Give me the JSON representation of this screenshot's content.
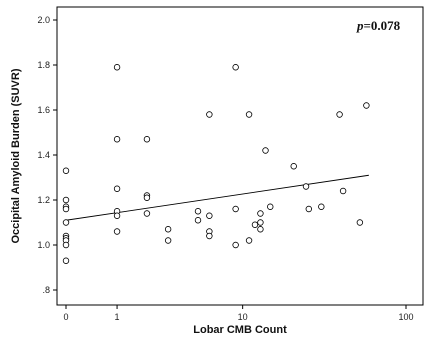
{
  "chart_data": {
    "type": "scatter",
    "title": "",
    "xlabel": "Lobar CMB Count",
    "ylabel": "Occipital Amyloid Burden (SUVR)",
    "x_scale": "log1p",
    "xlim": [
      0,
      100
    ],
    "ylim": [
      0.8,
      2.0
    ],
    "x_ticks": [
      {
        "value": 0,
        "label": "0"
      },
      {
        "value": 1,
        "label": "1"
      },
      {
        "value": 10,
        "label": "10"
      },
      {
        "value": 100,
        "label": "100"
      }
    ],
    "y_ticks": [
      {
        "value": 0.8,
        "label": ".8"
      },
      {
        "value": 1.0,
        "label": "1.0"
      },
      {
        "value": 1.2,
        "label": "1.2"
      },
      {
        "value": 1.4,
        "label": "1.4"
      },
      {
        "value": 1.6,
        "label": "1.6"
      },
      {
        "value": 1.8,
        "label": "1.8"
      },
      {
        "value": 2.0,
        "label": "2.0"
      }
    ],
    "annotation": {
      "italic": "p",
      "text": "=0.078"
    },
    "grid": false,
    "points": [
      {
        "x": 0,
        "y": 1.33
      },
      {
        "x": 0,
        "y": 1.2
      },
      {
        "x": 0,
        "y": 1.17
      },
      {
        "x": 0,
        "y": 1.16
      },
      {
        "x": 0,
        "y": 1.1
      },
      {
        "x": 0,
        "y": 1.04
      },
      {
        "x": 0,
        "y": 1.03
      },
      {
        "x": 0,
        "y": 1.02
      },
      {
        "x": 0,
        "y": 1.0
      },
      {
        "x": 0,
        "y": 0.93
      },
      {
        "x": 1,
        "y": 1.79
      },
      {
        "x": 1,
        "y": 1.47
      },
      {
        "x": 1,
        "y": 1.25
      },
      {
        "x": 1,
        "y": 1.15
      },
      {
        "x": 1,
        "y": 1.13
      },
      {
        "x": 1,
        "y": 1.06
      },
      {
        "x": 2,
        "y": 1.47
      },
      {
        "x": 2,
        "y": 1.22
      },
      {
        "x": 2,
        "y": 1.21
      },
      {
        "x": 2,
        "y": 1.14
      },
      {
        "x": 3,
        "y": 1.07
      },
      {
        "x": 3,
        "y": 1.02
      },
      {
        "x": 5,
        "y": 1.15
      },
      {
        "x": 5,
        "y": 1.11
      },
      {
        "x": 6,
        "y": 1.58
      },
      {
        "x": 6,
        "y": 1.13
      },
      {
        "x": 6,
        "y": 1.06
      },
      {
        "x": 6,
        "y": 1.04
      },
      {
        "x": 9,
        "y": 1.79
      },
      {
        "x": 9,
        "y": 1.16
      },
      {
        "x": 9,
        "y": 1.0
      },
      {
        "x": 11,
        "y": 1.58
      },
      {
        "x": 11,
        "y": 1.02
      },
      {
        "x": 12,
        "y": 1.09
      },
      {
        "x": 13,
        "y": 1.14
      },
      {
        "x": 13,
        "y": 1.1
      },
      {
        "x": 13,
        "y": 1.07
      },
      {
        "x": 14,
        "y": 1.42
      },
      {
        "x": 15,
        "y": 1.17
      },
      {
        "x": 21,
        "y": 1.35
      },
      {
        "x": 25,
        "y": 1.26
      },
      {
        "x": 26,
        "y": 1.16
      },
      {
        "x": 31,
        "y": 1.17
      },
      {
        "x": 40,
        "y": 1.58
      },
      {
        "x": 42,
        "y": 1.24
      },
      {
        "x": 53,
        "y": 1.1
      },
      {
        "x": 58,
        "y": 1.62
      }
    ],
    "fit_line": {
      "x": [
        0,
        60
      ],
      "y": [
        1.11,
        1.31
      ]
    }
  }
}
